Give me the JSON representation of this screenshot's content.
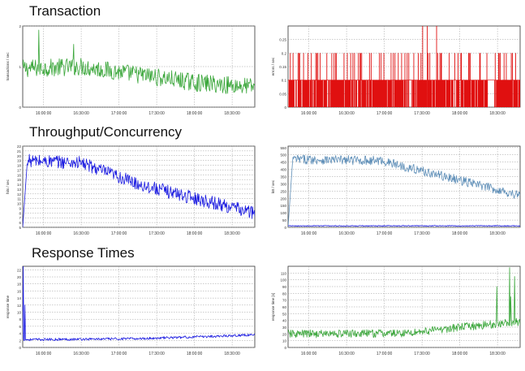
{
  "sections": {
    "transaction": "Transaction",
    "throughput": "Throughput/Concurrency",
    "response": "Response Times"
  },
  "chart_data": [
    {
      "type": "line",
      "ylabel": "transactions / sec",
      "ylim": [
        0,
        2
      ],
      "yticks": [
        0,
        1,
        2
      ],
      "xticks": [
        "16:00:00",
        "16:30:00",
        "17:00:00",
        "17:30:00",
        "18:00:00",
        "18:30:00"
      ],
      "grid": true,
      "series": [
        {
          "color": "#3aa63a",
          "profile": [
            [
              0,
              0.95
            ],
            [
              0.25,
              1.0
            ],
            [
              0.5,
              0.8
            ],
            [
              0.75,
              0.6
            ],
            [
              1,
              0.5
            ]
          ],
          "noise": 0.22,
          "spikes": [
            [
              0.07,
              1.9
            ],
            [
              0.22,
              1.55
            ]
          ]
        }
      ]
    },
    {
      "type": "line",
      "ylabel": "errors / sec",
      "ylim": [
        0,
        0.3
      ],
      "yticks": [
        0,
        0.05,
        0.1,
        0.15,
        0.2,
        0.25
      ],
      "xticks": [
        "16:00:00",
        "16:30:00",
        "17:00:00",
        "17:30:00",
        "18:00:00",
        "18:30:00"
      ],
      "grid": true,
      "series": [
        {
          "color": "#e01010",
          "style": "pulses",
          "base": 0.1,
          "high": 0.2,
          "spikes": [
            [
              0.58,
              0.3
            ],
            [
              0.6,
              0.3
            ],
            [
              0.64,
              0.3
            ]
          ]
        }
      ]
    },
    {
      "type": "line",
      "ylabel": "hits / sec",
      "ylim": [
        5,
        22
      ],
      "yticks": [
        5,
        6,
        7,
        8,
        9,
        10,
        11,
        12,
        13,
        14,
        15,
        16,
        17,
        18,
        19,
        20,
        21,
        22
      ],
      "xticks": [
        "16:00:00",
        "16:30:00",
        "17:00:00",
        "17:30:00",
        "18:00:00",
        "18:30:00"
      ],
      "grid": true,
      "series": [
        {
          "color": "#1a1ae0",
          "profile": [
            [
              0,
              19
            ],
            [
              0.25,
              18.5
            ],
            [
              0.5,
              14
            ],
            [
              0.75,
              11
            ],
            [
              1,
              8
            ]
          ],
          "noise": 1.4,
          "rampup": true
        }
      ]
    },
    {
      "type": "line",
      "ylabel": "kB / sec",
      "ylim": [
        0,
        560
      ],
      "yticks": [
        0,
        50,
        100,
        150,
        200,
        250,
        300,
        350,
        400,
        450,
        500,
        550
      ],
      "xticks": [
        "16:00:00",
        "16:30:00",
        "17:00:00",
        "17:30:00",
        "18:00:00",
        "18:30:00"
      ],
      "grid": true,
      "series": [
        {
          "color": "#5f8fb8",
          "profile": [
            [
              0,
              470
            ],
            [
              0.4,
              460
            ],
            [
              0.6,
              380
            ],
            [
              0.8,
              300
            ],
            [
              1,
              220
            ]
          ],
          "noise": 32,
          "rampup": true
        },
        {
          "color": "#1a1ae0",
          "profile": [
            [
              0,
              10
            ],
            [
              1,
              10
            ]
          ],
          "noise": 3
        }
      ]
    },
    {
      "type": "line",
      "ylabel": "response time",
      "ylim": [
        0,
        23
      ],
      "yticks": [
        0,
        2,
        4,
        6,
        8,
        10,
        12,
        14,
        16,
        18,
        20,
        22
      ],
      "xticks": [
        "16:00:00",
        "16:30:00",
        "17:00:00",
        "17:30:00",
        "18:00:00",
        "18:30:00"
      ],
      "grid": true,
      "series": [
        {
          "color": "#1a1ae0",
          "profile": [
            [
              0,
              2.2
            ],
            [
              0.5,
              2.5
            ],
            [
              0.75,
              3.0
            ],
            [
              1,
              3.6
            ]
          ],
          "noise": 0.35,
          "spikes": [
            [
              0.003,
              23
            ],
            [
              0.01,
              12
            ]
          ]
        }
      ]
    },
    {
      "type": "line",
      "ylabel": "response time [s]",
      "ylim": [
        0,
        120
      ],
      "yticks": [
        0,
        10,
        20,
        30,
        40,
        50,
        60,
        70,
        80,
        90,
        100,
        110
      ],
      "xticks": [
        "16:00:00",
        "16:30:00",
        "17:00:00",
        "17:30:00",
        "18:00:00",
        "18:30:00"
      ],
      "grid": true,
      "series": [
        {
          "color": "#3aa63a",
          "profile": [
            [
              0,
              20
            ],
            [
              0.5,
              21
            ],
            [
              0.75,
              30
            ],
            [
              1,
              38
            ]
          ],
          "noise": 6,
          "spikes": [
            [
              0.9,
              90
            ],
            [
              0.955,
              118
            ],
            [
              0.975,
              105
            ],
            [
              0.96,
              75
            ]
          ]
        }
      ]
    }
  ]
}
